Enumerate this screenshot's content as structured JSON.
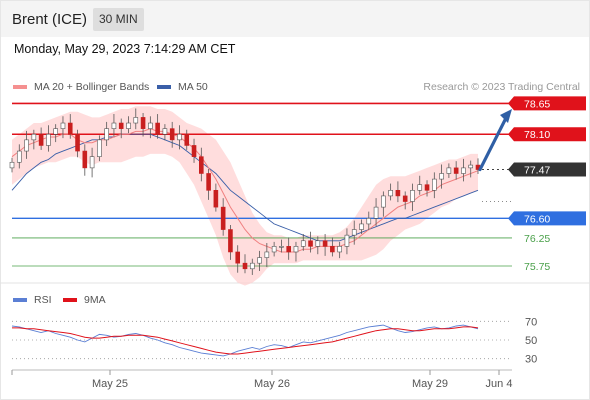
{
  "header": {
    "instrument": "Brent (ICE)",
    "timeframe": "30 MIN",
    "datetime": "Monday, May 29, 2023 7:14:29 AM CET"
  },
  "legend": {
    "ma20_label": "MA 20 + Bollinger Bands",
    "ma50_label": "MA 50",
    "credit": "Research © 2023 Trading Central",
    "rsi_label": "RSI",
    "rsi_ma_label": "9MA"
  },
  "colors": {
    "resistance": "#e0121b",
    "support": "#2f6fe0",
    "target": "#4aa04a",
    "price": "#333333",
    "candle": "#c91f1f",
    "bollinger": "#ffcfcf",
    "ma20": "#f08080",
    "ma50": "#3a5fa8",
    "arrow": "#2f5fa5",
    "rsi": "#5b7fd4",
    "rsi_ma": "#e0121b"
  },
  "chart_data": [
    {
      "type": "line",
      "title": "",
      "xlabel": "",
      "ylabel": "",
      "ylim": [
        75.5,
        78.8
      ],
      "x_ticks": [
        "May 25",
        "May 26",
        "May 29",
        "Jun 4"
      ],
      "levels": [
        {
          "value": 78.65,
          "label": "78.65",
          "kind": "resistance"
        },
        {
          "value": 78.1,
          "label": "78.10",
          "kind": "resistance"
        },
        {
          "value": 77.47,
          "label": "77.47",
          "kind": "price"
        },
        {
          "value": 76.6,
          "label": "76.60",
          "kind": "support"
        },
        {
          "value": 76.25,
          "label": "76.25",
          "kind": "target"
        },
        {
          "value": 75.75,
          "label": "75.75",
          "kind": "target"
        }
      ],
      "price_close": [
        77.6,
        77.8,
        78.0,
        78.1,
        77.9,
        78.1,
        78.2,
        78.3,
        78.1,
        77.8,
        77.5,
        77.7,
        78.0,
        78.2,
        78.3,
        78.2,
        78.3,
        78.4,
        78.2,
        78.3,
        78.1,
        78.2,
        78.0,
        78.1,
        77.9,
        77.7,
        77.4,
        77.1,
        76.8,
        76.4,
        76.0,
        75.8,
        75.7,
        75.8,
        75.9,
        76.0,
        76.1,
        76.1,
        76.0,
        76.1,
        76.2,
        76.1,
        76.2,
        76.1,
        76.0,
        76.1,
        76.3,
        76.4,
        76.5,
        76.6,
        76.8,
        77.0,
        77.1,
        77.0,
        76.9,
        77.1,
        77.2,
        77.1,
        77.3,
        77.4,
        77.5,
        77.4,
        77.5,
        77.55,
        77.47
      ],
      "ma20": [
        77.7,
        77.8,
        77.9,
        77.95,
        78.0,
        78.05,
        78.05,
        78.1,
        78.1,
        78.0,
        77.95,
        77.95,
        78.0,
        78.0,
        78.05,
        78.1,
        78.1,
        78.15,
        78.15,
        78.2,
        78.15,
        78.15,
        78.1,
        78.05,
        77.95,
        77.85,
        77.7,
        77.5,
        77.3,
        77.05,
        76.8,
        76.6,
        76.4,
        76.25,
        76.15,
        76.1,
        76.05,
        76.0,
        76.0,
        76.0,
        76.05,
        76.05,
        76.1,
        76.1,
        76.1,
        76.1,
        76.15,
        76.2,
        76.3,
        76.4,
        76.5,
        76.6,
        76.7,
        76.8,
        76.85,
        76.9,
        77.0,
        77.05,
        77.1,
        77.2,
        77.25,
        77.3,
        77.35,
        77.4,
        77.45
      ],
      "bollinger_upper": [
        78.0,
        78.1,
        78.2,
        78.3,
        78.3,
        78.35,
        78.4,
        78.45,
        78.5,
        78.5,
        78.45,
        78.4,
        78.4,
        78.45,
        78.5,
        78.55,
        78.55,
        78.6,
        78.6,
        78.6,
        78.55,
        78.55,
        78.5,
        78.4,
        78.3,
        78.25,
        78.2,
        78.1,
        78.0,
        77.8,
        77.6,
        77.3,
        77.0,
        76.7,
        76.5,
        76.35,
        76.3,
        76.3,
        76.25,
        76.25,
        76.3,
        76.3,
        76.3,
        76.3,
        76.3,
        76.35,
        76.45,
        76.6,
        76.8,
        77.0,
        77.2,
        77.3,
        77.35,
        77.35,
        77.35,
        77.4,
        77.45,
        77.5,
        77.55,
        77.6,
        77.65,
        77.65,
        77.7,
        77.75,
        77.75
      ],
      "bollinger_lower": [
        77.2,
        77.3,
        77.4,
        77.5,
        77.55,
        77.6,
        77.6,
        77.65,
        77.7,
        77.7,
        77.6,
        77.55,
        77.6,
        77.6,
        77.6,
        77.6,
        77.65,
        77.7,
        77.7,
        77.75,
        77.75,
        77.75,
        77.7,
        77.6,
        77.4,
        77.2,
        76.9,
        76.6,
        76.3,
        75.9,
        75.6,
        75.45,
        75.4,
        75.45,
        75.55,
        75.7,
        75.8,
        75.8,
        75.8,
        75.8,
        75.85,
        75.85,
        75.85,
        75.85,
        75.85,
        75.85,
        75.85,
        75.85,
        75.85,
        75.9,
        75.95,
        76.05,
        76.2,
        76.3,
        76.4,
        76.45,
        76.5,
        76.6,
        76.7,
        76.8,
        76.85,
        76.95,
        77.0,
        77.05,
        77.1
      ],
      "ma50": [
        77.1,
        77.25,
        77.4,
        77.5,
        77.6,
        77.65,
        77.75,
        77.8,
        77.85,
        77.9,
        77.95,
        78.0,
        78.0,
        78.05,
        78.05,
        78.1,
        78.1,
        78.1,
        78.1,
        78.1,
        78.05,
        78.0,
        77.95,
        77.9,
        77.8,
        77.7,
        77.6,
        77.5,
        77.4,
        77.25,
        77.1,
        77.0,
        76.9,
        76.8,
        76.7,
        76.6,
        76.5,
        76.45,
        76.4,
        76.35,
        76.3,
        76.25,
        76.2,
        76.2,
        76.2,
        76.2,
        76.25,
        76.3,
        76.35,
        76.4,
        76.45,
        76.5,
        76.55,
        76.6,
        76.6,
        76.65,
        76.7,
        76.75,
        76.8,
        76.85,
        76.9,
        76.95,
        77.0,
        77.05,
        77.1
      ]
    },
    {
      "type": "line",
      "title": "",
      "ylim": [
        20,
        80
      ],
      "levels": [
        70,
        50,
        30
      ],
      "rsi": [
        65,
        64,
        62,
        60,
        58,
        60,
        57,
        55,
        53,
        50,
        48,
        52,
        56,
        55,
        53,
        54,
        56,
        57,
        55,
        52,
        50,
        47,
        45,
        42,
        40,
        38,
        36,
        35,
        34,
        33,
        35,
        38,
        40,
        42,
        40,
        43,
        45,
        44,
        42,
        45,
        48,
        47,
        49,
        51,
        53,
        55,
        58,
        60,
        62,
        64,
        65,
        66,
        63,
        60,
        58,
        59,
        61,
        63,
        64,
        62,
        63,
        65,
        66,
        64,
        62
      ],
      "rsi_ma": [
        63,
        63,
        62,
        62,
        61,
        60,
        59,
        58,
        57,
        55,
        53,
        52,
        52,
        53,
        54,
        54,
        55,
        55,
        55,
        54,
        53,
        51,
        49,
        47,
        45,
        43,
        41,
        39,
        37,
        36,
        35,
        35,
        36,
        37,
        38,
        39,
        40,
        41,
        42,
        43,
        44,
        45,
        46,
        47,
        48,
        50,
        52,
        54,
        56,
        58,
        60,
        61,
        62,
        62,
        61,
        60,
        60,
        61,
        62,
        62,
        62,
        63,
        64,
        64,
        63
      ]
    }
  ]
}
